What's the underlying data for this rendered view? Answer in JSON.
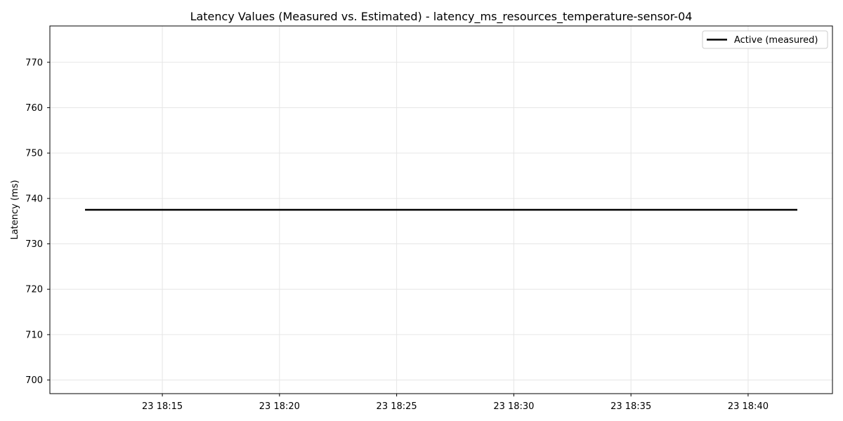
{
  "chart_data": {
    "type": "line",
    "title": "Latency Values (Measured vs. Estimated) - latency_ms_resources_temperature-sensor-04",
    "xlabel": "",
    "ylabel": "Latency (ms)",
    "x_ticks": [
      "23 18:15",
      "23 18:20",
      "23 18:25",
      "23 18:30",
      "23 18:35",
      "23 18:40"
    ],
    "x_tick_minutes": [
      15,
      20,
      25,
      30,
      35,
      40
    ],
    "xlim_minutes": [
      10.2,
      43.6
    ],
    "y_ticks": [
      700,
      710,
      720,
      730,
      740,
      750,
      760,
      770
    ],
    "ylim": [
      697,
      778
    ],
    "grid": true,
    "legend_position": "top-right",
    "series": [
      {
        "name": "Active (measured)",
        "color": "#000000",
        "x_minutes": [
          11.7,
          42.1
        ],
        "values": [
          737.5,
          737.5
        ]
      }
    ]
  }
}
